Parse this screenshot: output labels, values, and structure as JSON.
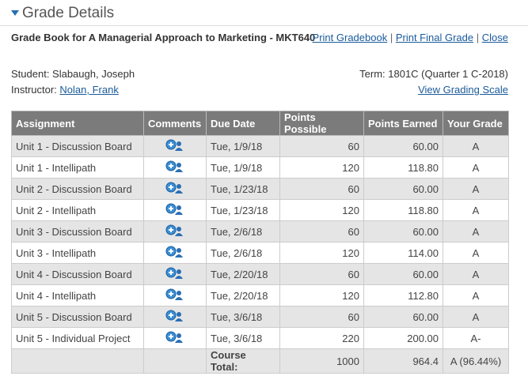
{
  "header": {
    "title": "Grade Details",
    "subtitle": "Grade Book for A Managerial Approach to Marketing - MKT640",
    "links": [
      "Print Gradebook",
      "Print Final Grade",
      "Close"
    ],
    "separator": "|"
  },
  "info": {
    "student": "Student: Slabaugh, Joseph",
    "instructor_label": "Instructor:",
    "instructor": "Nolan, Frank",
    "term": "Term: 1801C (Quarter 1 C-2018)",
    "scale_link": "View Grading Scale"
  },
  "table": {
    "columns": [
      "Assignment",
      "Comments",
      "Due Date",
      "Points Possible",
      "Points Earned",
      "Your Grade"
    ],
    "rows": [
      [
        "Unit 1 - Discussion Board",
        "Tue, 1/9/18",
        60,
        "60.00",
        "A"
      ],
      [
        "Unit 1 - Intellipath",
        "Tue, 1/9/18",
        120,
        "118.80",
        "A"
      ],
      [
        "Unit 2 - Discussion Board",
        "Tue, 1/23/18",
        60,
        "60.00",
        "A"
      ],
      [
        "Unit 2 - Intellipath",
        "Tue, 1/23/18",
        120,
        "118.80",
        "A"
      ],
      [
        "Unit 3 - Discussion Board",
        "Tue, 2/6/18",
        60,
        "60.00",
        "A"
      ],
      [
        "Unit 3 - Intellipath",
        "Tue, 2/6/18",
        120,
        "114.00",
        "A"
      ],
      [
        "Unit 4 - Discussion Board",
        "Tue, 2/20/18",
        60,
        "60.00",
        "A"
      ],
      [
        "Unit 4 - Intellipath",
        "Tue, 2/20/18",
        120,
        "112.80",
        "A"
      ],
      [
        "Unit 5 - Discussion Board",
        "Tue, 3/6/18",
        60,
        "60.00",
        "A"
      ],
      [
        "Unit 5 - Individual Project",
        "Tue, 3/6/18",
        220,
        "200.00",
        "A-"
      ]
    ],
    "total": {
      "label": "Course Total:",
      "possible": 1000,
      "earned": 964.4,
      "grade": "A (96.44%)"
    }
  }
}
